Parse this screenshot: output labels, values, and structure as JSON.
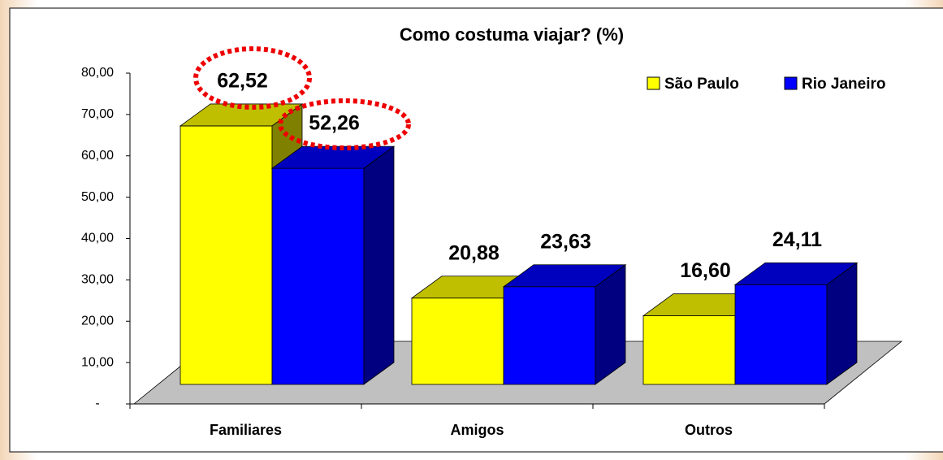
{
  "chart_data": {
    "type": "bar3d",
    "title": "Como costuma viajar? (%)",
    "categories": [
      "Familiares",
      "Amigos",
      "Outros"
    ],
    "series": [
      {
        "name": "São Paulo",
        "color": "#ffff00",
        "values": [
          62.52,
          20.88,
          16.6
        ],
        "value_labels": [
          "62,52",
          "20,88",
          "16,60"
        ]
      },
      {
        "name": "Rio Janeiro",
        "color": "#0000ff",
        "values": [
          52.26,
          23.63,
          24.11
        ],
        "value_labels": [
          "52,26",
          "23,63",
          "24,11"
        ]
      }
    ],
    "ylim": [
      0,
      80
    ],
    "yticks": [
      {
        "value": 0,
        "label": "-"
      },
      {
        "value": 10,
        "label": "10,00"
      },
      {
        "value": 20,
        "label": "20,00"
      },
      {
        "value": 30,
        "label": "30,00"
      },
      {
        "value": 40,
        "label": "40,00"
      },
      {
        "value": 50,
        "label": "50,00"
      },
      {
        "value": 60,
        "label": "60,00"
      },
      {
        "value": 70,
        "label": "70,00"
      },
      {
        "value": 80,
        "label": "80,00"
      }
    ],
    "legend": "top-right"
  }
}
